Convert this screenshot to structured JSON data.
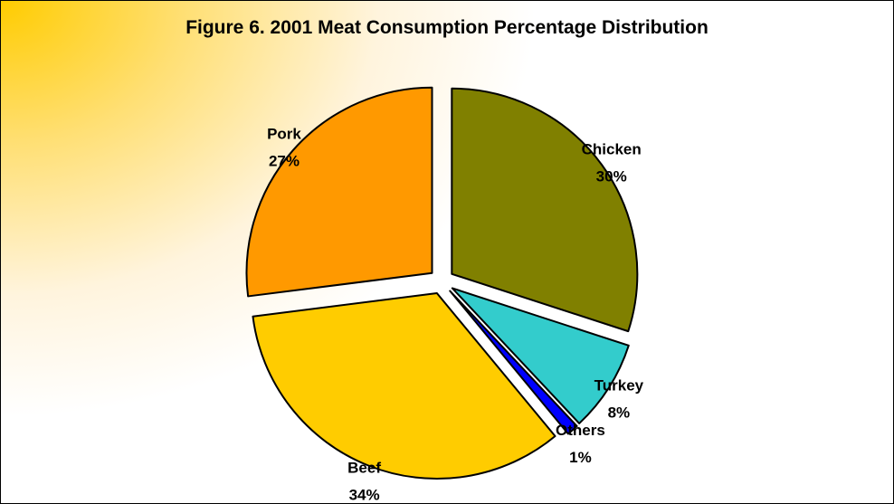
{
  "chart_data": {
    "type": "pie",
    "title": "Figure 6. 2001 Meat Consumption Percentage Distribution",
    "slices": [
      {
        "label": "Chicken",
        "value": 30,
        "value_label": "30%",
        "color": "#808000"
      },
      {
        "label": "Turkey",
        "value": 8,
        "value_label": "8%",
        "color": "#33cccc"
      },
      {
        "label": "Others",
        "value": 1,
        "value_label": "1%",
        "color": "#0000ff"
      },
      {
        "label": "Beef",
        "value": 34,
        "value_label": "34%",
        "color": "#ffcc00"
      },
      {
        "label": "Pork",
        "value": 27,
        "value_label": "27%",
        "color": "#ff9900"
      }
    ],
    "exploded": true,
    "legend": "none"
  },
  "colors": {
    "background_gradient": [
      "#ffcc00",
      "#ffffff"
    ],
    "border": "#000000"
  }
}
